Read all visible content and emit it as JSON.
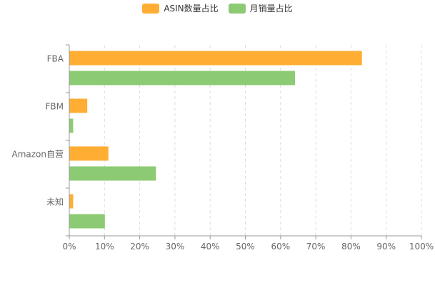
{
  "chart_data": {
    "type": "bar",
    "orientation": "horizontal",
    "categories": [
      "FBA",
      "FBM",
      "Amazon自营",
      "未知"
    ],
    "series": [
      {
        "name": "ASIN数量占比",
        "color": "#FFAD33",
        "values": [
          83,
          5,
          11,
          1
        ]
      },
      {
        "name": "月销量占比",
        "color": "#8CCB73",
        "values": [
          64,
          1,
          24.5,
          10
        ]
      }
    ],
    "x_ticks": [
      "0%",
      "10%",
      "20%",
      "30%",
      "40%",
      "50%",
      "60%",
      "70%",
      "80%",
      "90%",
      "100%"
    ],
    "xlim": [
      0,
      100
    ],
    "grid": true,
    "legend_position": "top-center"
  }
}
